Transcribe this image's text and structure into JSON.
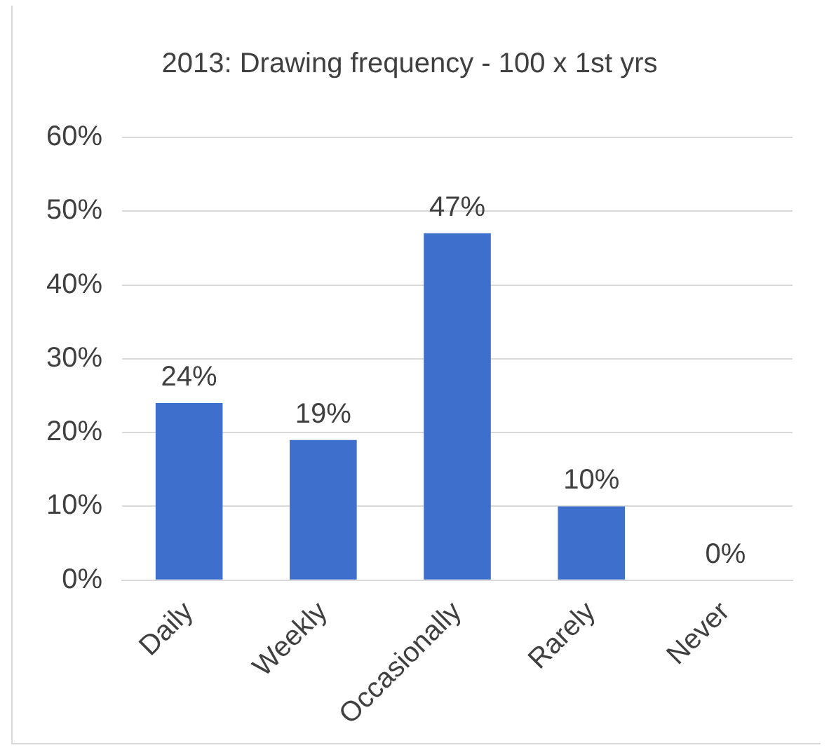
{
  "chart_data": {
    "type": "bar",
    "title": "2013: Drawing frequency - 100 x 1st yrs",
    "categories": [
      "Daily",
      "Weekly",
      "Occasionally",
      "Rarely",
      "Never"
    ],
    "values": [
      24,
      19,
      47,
      10,
      0
    ],
    "value_labels": [
      "24%",
      "19%",
      "47%",
      "10%",
      "0%"
    ],
    "color": "#3f6fcc",
    "ylim": [
      0,
      60
    ],
    "yticks": [
      {
        "value": 0,
        "label": "0%"
      },
      {
        "value": 10,
        "label": "10%"
      },
      {
        "value": 20,
        "label": "20%"
      },
      {
        "value": 30,
        "label": "30%"
      },
      {
        "value": 40,
        "label": "40%"
      },
      {
        "value": 50,
        "label": "50%"
      },
      {
        "value": 60,
        "label": "60%"
      }
    ],
    "grid": "y"
  }
}
